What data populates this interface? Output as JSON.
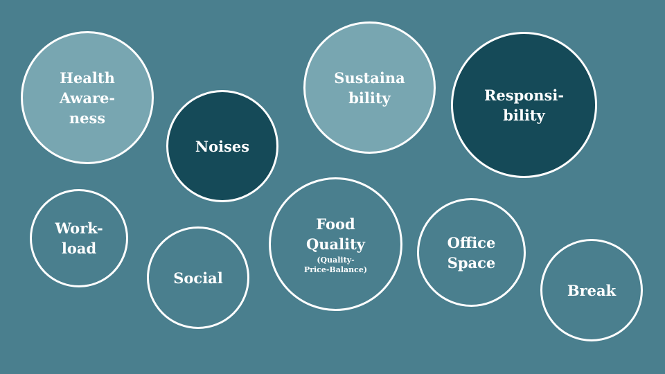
{
  "background_color": "#4a7f8e",
  "colors": {
    "light": "#78a6b1",
    "dark": "#154a58",
    "mid": "#4a7f8e",
    "border": "#ffffff"
  },
  "bubbles": {
    "health": {
      "lines": [
        "Health",
        "Aware-",
        "ness"
      ]
    },
    "noises": {
      "lines": [
        "Noises"
      ]
    },
    "sustain": {
      "lines": [
        "Sustaina",
        "bility"
      ]
    },
    "respons": {
      "lines": [
        "Responsi-",
        "bility"
      ]
    },
    "work": {
      "lines": [
        "Work-",
        "load"
      ]
    },
    "social": {
      "lines": [
        "Social"
      ]
    },
    "food": {
      "lines": [
        "Food",
        "Quality"
      ],
      "sub": [
        "(Quality-",
        "Price-Balance)"
      ]
    },
    "office": {
      "lines": [
        "Office",
        "Space"
      ]
    },
    "break": {
      "lines": [
        "Break"
      ]
    }
  }
}
